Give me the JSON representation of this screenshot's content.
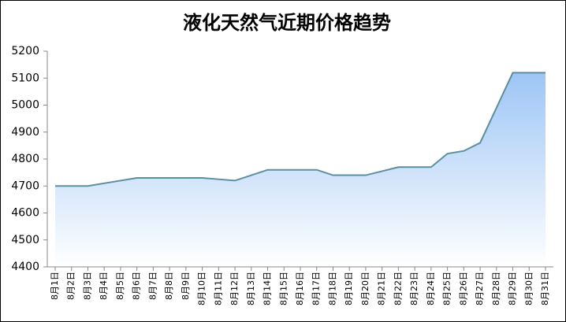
{
  "chart_data": {
    "type": "area",
    "title": "液化天然气近期价格趋势",
    "categories": [
      "8月1日",
      "8月2日",
      "8月3日",
      "8月4日",
      "8月5日",
      "8月6日",
      "8月7日",
      "8月8日",
      "8月9日",
      "8月10日",
      "8月11日",
      "8月12日",
      "8月13日",
      "8月14日",
      "8月15日",
      "8月16日",
      "8月17日",
      "8月18日",
      "8月19日",
      "8月20日",
      "8月21日",
      "8月22日",
      "8月23日",
      "8月24日",
      "8月25日",
      "8月26日",
      "8月27日",
      "8月28日",
      "8月29日",
      "8月30日",
      "8月31日"
    ],
    "values": [
      4700,
      4700,
      4700,
      4710,
      4720,
      4730,
      4730,
      4730,
      4730,
      4730,
      4725,
      4720,
      4740,
      4760,
      4760,
      4760,
      4760,
      4740,
      4740,
      4740,
      4755,
      4770,
      4770,
      4770,
      4820,
      4830,
      4860,
      4990,
      5120,
      5120,
      5120
    ],
    "color": "#5b8fa0",
    "fill_color": "#9ec5f5",
    "ylim": [
      4400,
      5200
    ],
    "yticks": [
      4400,
      4500,
      4600,
      4700,
      4800,
      4900,
      5000,
      5100,
      5200
    ]
  }
}
